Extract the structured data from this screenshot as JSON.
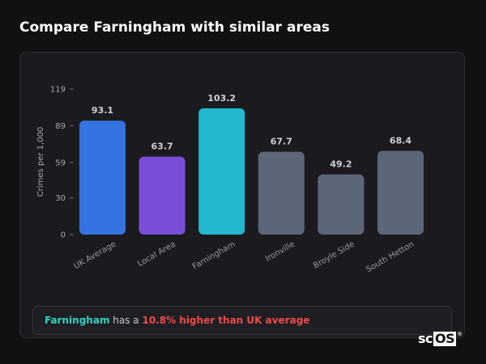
{
  "page": {
    "title": "Compare Farningham with similar areas"
  },
  "summary": {
    "area": "Farningham",
    "middle": " has a ",
    "difference": "10.8% higher than UK average"
  },
  "logo": {
    "left": "sc",
    "box": "OS",
    "mark": "®"
  },
  "colors": {
    "uk": "#3574e0",
    "local": "#7a4fd8",
    "focus": "#22b8d0",
    "other": "#5c6679"
  },
  "chart_data": {
    "type": "bar",
    "title": "",
    "xlabel": "",
    "ylabel": "Crimes per 1,000",
    "ylim": [
      0,
      119
    ],
    "yticks": [
      0,
      30,
      59,
      89,
      119
    ],
    "categories": [
      "UK Average",
      "Local Area",
      "Farningham",
      "Ironville",
      "Broyle Side",
      "South Hetton"
    ],
    "values": [
      93.1,
      63.7,
      103.2,
      67.7,
      49.2,
      68.4
    ],
    "value_labels": [
      "93.1",
      "63.7",
      "103.2",
      "67.7",
      "49.2",
      "68.4"
    ],
    "bar_colors": [
      "#3574e0",
      "#7a4fd8",
      "#22b8d0",
      "#5c6679",
      "#5c6679",
      "#5c6679"
    ],
    "grid": false,
    "legend": "none"
  }
}
